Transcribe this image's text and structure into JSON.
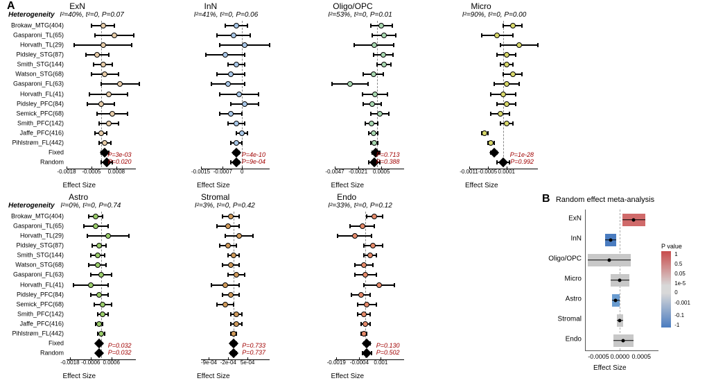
{
  "panel_labels": {
    "A": "A",
    "B": "B"
  },
  "heterogeneity_label": "Heterogeneity",
  "studies": [
    "Brokaw_MTG(404)",
    "Gasparoni_TL(65)",
    "Horvath_TL(29)",
    "Pidsley_STG(87)",
    "Smith_STG(144)",
    "Watson_STG(68)",
    "Gasparoni_FL(63)",
    "Horvath_FL(41)",
    "Pidsley_PFC(84)",
    "Semick_PFC(68)",
    "Smith_PFC(142)",
    "Jaffe_PFC(416)",
    "Pihlstrøm_FL(442)",
    "Fixed",
    "Random"
  ],
  "panels": [
    {
      "title": "ExN",
      "het": "I²=40%, t²=0, P=0.07",
      "color": "#e8cda9",
      "xlim": [
        -0.0018,
        0.0018
      ],
      "ticks": [
        "-0.0018",
        "-0.0005",
        "0.0008"
      ],
      "tick_pos": [
        -0.0018,
        -0.0005,
        0.0008
      ],
      "p_fixed": "P=3e-03",
      "p_random": "P=0.020",
      "rows": [
        {
          "est": 0.0001,
          "lo": -0.0005,
          "hi": 0.0007
        },
        {
          "est": 0.0007,
          "lo": -0.0003,
          "hi": 0.0017
        },
        {
          "est": 0.0001,
          "lo": -0.0014,
          "hi": 0.0016
        },
        {
          "est": -0.0002,
          "lo": -0.0008,
          "hi": 0.0004
        },
        {
          "est": 0.0001,
          "lo": -0.0004,
          "hi": 0.0006
        },
        {
          "est": 0.0002,
          "lo": -0.0005,
          "hi": 0.0009
        },
        {
          "est": 0.001,
          "lo": 0.0,
          "hi": 0.002
        },
        {
          "est": 0.0004,
          "lo": -0.0006,
          "hi": 0.0014
        },
        {
          "est": 0.0,
          "lo": -0.0007,
          "hi": 0.0007
        },
        {
          "est": 0.0006,
          "lo": -0.0002,
          "hi": 0.0014
        },
        {
          "est": 0.0004,
          "lo": -0.0001,
          "hi": 0.0009
        },
        {
          "est": 0.0,
          "lo": -0.0003,
          "hi": 0.0003
        },
        {
          "est": 0.0002,
          "lo": -0.0001,
          "hi": 0.0005
        },
        {
          "est": 0.0002,
          "lo": 0.0,
          "hi": 0.0004,
          "pooled": true
        },
        {
          "est": 0.0003,
          "lo": 0.0,
          "hi": 0.0006,
          "pooled": true
        }
      ]
    },
    {
      "title": "InN",
      "het": "I²=41%, t²=0, P=0.06",
      "color": "#a8c7e8",
      "xlim": [
        -0.0015,
        0.001
      ],
      "ticks": [
        "-0.0015",
        "-0.0007",
        "0"
      ],
      "tick_pos": [
        -0.0015,
        -0.0007,
        0
      ],
      "p_fixed": "P=4e-10",
      "p_random": "P=9e-04",
      "rows": [
        {
          "est": -0.0002,
          "lo": -0.0006,
          "hi": 0.0002
        },
        {
          "est": -0.0003,
          "lo": -0.0009,
          "hi": 0.0003
        },
        {
          "est": 0.0001,
          "lo": -0.0008,
          "hi": 0.001
        },
        {
          "est": -0.0006,
          "lo": -0.0013,
          "hi": 0.0001
        },
        {
          "est": -0.0002,
          "lo": -0.0005,
          "hi": 0.0001
        },
        {
          "est": -0.0004,
          "lo": -0.0009,
          "hi": 0.0001
        },
        {
          "est": -0.0005,
          "lo": -0.0011,
          "hi": 0.0001
        },
        {
          "est": -0.0001,
          "lo": -0.0008,
          "hi": 0.0006
        },
        {
          "est": 0.0001,
          "lo": -0.0004,
          "hi": 0.0006
        },
        {
          "est": -0.0004,
          "lo": -0.0008,
          "hi": 0.0
        },
        {
          "est": -0.0002,
          "lo": -0.0005,
          "hi": 0.0001
        },
        {
          "est": 0.0,
          "lo": -0.0002,
          "hi": 0.0002
        },
        {
          "est": -0.0002,
          "lo": -0.0004,
          "hi": 0.0
        },
        {
          "est": -0.0002,
          "lo": -0.0003,
          "hi": -0.0001,
          "pooled": true
        },
        {
          "est": -0.0002,
          "lo": -0.0004,
          "hi": -0.0001,
          "pooled": true
        }
      ]
    },
    {
      "title": "Oligo/OPC",
      "het": "I²=53%, t²=0, P=0.01",
      "color": "#a8d8b0",
      "xlim": [
        -0.0047,
        0.003
      ],
      "ticks": [
        "-0.0047",
        "-0.0021",
        "0.0005"
      ],
      "tick_pos": [
        -0.0047,
        -0.0021,
        0.0005
      ],
      "p_fixed": "P=0.713",
      "p_random": "P=0.388",
      "rows": [
        {
          "est": 0.0005,
          "lo": -0.0007,
          "hi": 0.0017
        },
        {
          "est": 0.0008,
          "lo": -0.0005,
          "hi": 0.0021
        },
        {
          "est": -0.0003,
          "lo": -0.0025,
          "hi": 0.0019
        },
        {
          "est": 0.0007,
          "lo": -0.0004,
          "hi": 0.0018
        },
        {
          "est": 0.0008,
          "lo": 0.0,
          "hi": 0.0016
        },
        {
          "est": -0.0004,
          "lo": -0.0015,
          "hi": 0.0007
        },
        {
          "est": -0.003,
          "lo": -0.005,
          "hi": -0.001
        },
        {
          "est": -0.0002,
          "lo": -0.0016,
          "hi": 0.0012
        },
        {
          "est": -0.0005,
          "lo": -0.0015,
          "hi": 0.0005
        },
        {
          "est": 0.0003,
          "lo": -0.0007,
          "hi": 0.0013
        },
        {
          "est": -0.0006,
          "lo": -0.0013,
          "hi": 0.0001
        },
        {
          "est": -0.0004,
          "lo": -0.0009,
          "hi": 0.0001
        },
        {
          "est": -0.0003,
          "lo": -0.0007,
          "hi": 0.0001
        },
        {
          "est": -0.0001,
          "lo": -0.0005,
          "hi": 0.0003,
          "pooled": true
        },
        {
          "est": -0.0003,
          "lo": -0.0009,
          "hi": 0.0003,
          "pooled": true
        }
      ]
    },
    {
      "title": "Micro",
      "het": "I²=90%, t²=0, P=0.00",
      "color": "#d8d86a",
      "xlim": [
        -0.0011,
        0.0011
      ],
      "ticks": [
        "-0.0011",
        "-0.0005",
        "0.0001"
      ],
      "tick_pos": [
        -0.0011,
        -0.0005,
        0.0001
      ],
      "p_fixed": "P=1e-28",
      "p_random": "P=0.992",
      "rows": [
        {
          "est": 0.0003,
          "lo": 0.0,
          "hi": 0.0006
        },
        {
          "est": -0.0002,
          "lo": -0.0007,
          "hi": 0.0003
        },
        {
          "est": 0.0005,
          "lo": -0.0001,
          "hi": 0.0011
        },
        {
          "est": 0.0001,
          "lo": -0.0002,
          "hi": 0.0004
        },
        {
          "est": 0.0001,
          "lo": -0.0001,
          "hi": 0.0003
        },
        {
          "est": 0.0003,
          "lo": 0.0,
          "hi": 0.0006
        },
        {
          "est": 0.0001,
          "lo": -0.0003,
          "hi": 0.0005
        },
        {
          "est": 0.0,
          "lo": -0.0004,
          "hi": 0.0004
        },
        {
          "est": 0.0001,
          "lo": -0.0002,
          "hi": 0.0004
        },
        {
          "est": -0.0001,
          "lo": -0.0004,
          "hi": 0.0002
        },
        {
          "est": 0.0001,
          "lo": -0.0001,
          "hi": 0.0003
        },
        {
          "est": -0.0006,
          "lo": -0.0007,
          "hi": -0.0005
        },
        {
          "est": -0.0004,
          "lo": -0.0005,
          "hi": -0.0003
        },
        {
          "est": -0.0003,
          "lo": -0.0004,
          "hi": -0.0002,
          "pooled": true
        },
        {
          "est": 0.0,
          "lo": -0.0002,
          "hi": 0.0002,
          "pooled": true
        }
      ]
    },
    {
      "title": "Astro",
      "het": "I²=0%, t²=0, P=0.74",
      "color": "#9acd6a",
      "xlim": [
        -0.002,
        0.002
      ],
      "ticks": [
        "-0.0018",
        "-0.0006",
        "0.0006"
      ],
      "tick_pos": [
        -0.0018,
        -0.0006,
        0.0006
      ],
      "p_fixed": "P=0.032",
      "p_random": "P=0.032",
      "rows": [
        {
          "est": -0.0003,
          "lo": -0.0007,
          "hi": 0.0001
        },
        {
          "est": -0.0003,
          "lo": -0.001,
          "hi": 0.0004
        },
        {
          "est": 0.0004,
          "lo": -0.0008,
          "hi": 0.0016
        },
        {
          "est": -0.0001,
          "lo": -0.0005,
          "hi": 0.0003
        },
        {
          "est": -0.0002,
          "lo": -0.0006,
          "hi": 0.0002
        },
        {
          "est": -0.0002,
          "lo": -0.0007,
          "hi": 0.0003
        },
        {
          "est": 0.0,
          "lo": -0.0006,
          "hi": 0.0006
        },
        {
          "est": -0.0006,
          "lo": -0.0016,
          "hi": 0.0004
        },
        {
          "est": -0.0001,
          "lo": -0.0006,
          "hi": 0.0004
        },
        {
          "est": 0.0001,
          "lo": -0.0004,
          "hi": 0.0006
        },
        {
          "est": 0.0001,
          "lo": -0.0002,
          "hi": 0.0004
        },
        {
          "est": -0.0001,
          "lo": -0.0003,
          "hi": 0.0001
        },
        {
          "est": 0.0,
          "lo": -0.0002,
          "hi": 0.0002
        },
        {
          "est": -0.0001,
          "lo": -0.0002,
          "hi": 0.0,
          "pooled": true
        },
        {
          "est": -0.0001,
          "lo": -0.0002,
          "hi": 0.0,
          "pooled": true
        }
      ]
    },
    {
      "title": "Stromal",
      "het": "I²=3%, t²=0, P=0.42",
      "color": "#d09a5a",
      "xlim": [
        -0.0012,
        0.0013
      ],
      "ticks": [
        "-9e-04",
        "-2e-04",
        "5e-04"
      ],
      "tick_pos": [
        -0.0009,
        -0.0002,
        0.0005
      ],
      "p_fixed": "P=0.733",
      "p_random": "P=0.737",
      "rows": [
        {
          "est": -0.0001,
          "lo": -0.0004,
          "hi": 0.0002
        },
        {
          "est": -0.0002,
          "lo": -0.0006,
          "hi": 0.0002
        },
        {
          "est": 0.0002,
          "lo": -0.0003,
          "hi": 0.0007
        },
        {
          "est": -0.0002,
          "lo": -0.0005,
          "hi": 0.0001
        },
        {
          "est": 0.0,
          "lo": -0.0002,
          "hi": 0.0002
        },
        {
          "est": -0.0001,
          "lo": -0.0004,
          "hi": 0.0002
        },
        {
          "est": 0.0001,
          "lo": -0.0002,
          "hi": 0.0004
        },
        {
          "est": -0.0003,
          "lo": -0.0008,
          "hi": 0.0002
        },
        {
          "est": -0.0001,
          "lo": -0.0004,
          "hi": 0.0002
        },
        {
          "est": -0.0003,
          "lo": -0.0006,
          "hi": 0.0
        },
        {
          "est": 0.0001,
          "lo": -0.0001,
          "hi": 0.0003
        },
        {
          "est": 0.0001,
          "lo": -0.0001,
          "hi": 0.0003
        },
        {
          "est": 0.0,
          "lo": -0.0001,
          "hi": 0.0001
        },
        {
          "est": 0.0,
          "lo": -0.0001,
          "hi": 0.0001,
          "pooled": true
        },
        {
          "est": 0.0,
          "lo": -0.0001,
          "hi": 0.0001,
          "pooled": true
        }
      ]
    },
    {
      "title": "Endo",
      "het": "I²=33%, t²=0, P=0.12",
      "color": "#e68a6a",
      "xlim": [
        -0.002,
        0.0025
      ],
      "ticks": [
        "-0.0019",
        "-0.0004",
        "0.001"
      ],
      "tick_pos": [
        -0.0019,
        -0.0004,
        0.001
      ],
      "p_fixed": "P=0.130",
      "p_random": "P=0.502",
      "rows": [
        {
          "est": 0.0006,
          "lo": 0.0001,
          "hi": 0.0011
        },
        {
          "est": -0.0002,
          "lo": -0.001,
          "hi": 0.0006
        },
        {
          "est": -0.0007,
          "lo": -0.0018,
          "hi": 0.0004
        },
        {
          "est": 0.0005,
          "lo": -0.0001,
          "hi": 0.0011
        },
        {
          "est": 0.0003,
          "lo": -0.0001,
          "hi": 0.0007
        },
        {
          "est": -0.0001,
          "lo": -0.0007,
          "hi": 0.0005
        },
        {
          "est": 0.0,
          "lo": -0.0007,
          "hi": 0.0007
        },
        {
          "est": 0.0009,
          "lo": -0.0001,
          "hi": 0.0019
        },
        {
          "est": -0.0003,
          "lo": -0.0009,
          "hi": 0.0003
        },
        {
          "est": 0.0001,
          "lo": -0.0005,
          "hi": 0.0007
        },
        {
          "est": -0.0001,
          "lo": -0.0005,
          "hi": 0.0003
        },
        {
          "est": 0.0,
          "lo": -0.0003,
          "hi": 0.0003
        },
        {
          "est": -0.0001,
          "lo": -0.0003,
          "hi": 0.0001
        },
        {
          "est": 0.0001,
          "lo": -0.0001,
          "hi": 0.0003,
          "pooled": true
        },
        {
          "est": 0.0001,
          "lo": -0.0002,
          "hi": 0.0004,
          "pooled": true
        }
      ]
    }
  ],
  "x_axis_label": "Effect Size",
  "panelB": {
    "title": "Random effect meta-analysis",
    "xlim": [
      -0.0008,
      0.0009
    ],
    "ticks": [
      "-0.0005",
      "0.0000",
      "0.0005"
    ],
    "tick_pos": [
      -0.0005,
      0.0,
      0.0005
    ],
    "xlabel": "Effect Size",
    "legend_title": "P value",
    "legend_labels": [
      "1",
      "0.5",
      "0.05",
      "1e-5",
      "0",
      "-0.001",
      "-0.1",
      "-1"
    ],
    "rows": [
      {
        "name": "ExN",
        "est": 0.00032,
        "lo": 5e-05,
        "hi": 0.0006,
        "col": "#d06a6a"
      },
      {
        "name": "InN",
        "est": -0.00022,
        "lo": -0.00035,
        "hi": -8e-05,
        "col": "#4a7cc0"
      },
      {
        "name": "Oligo/OPC",
        "est": -0.00025,
        "lo": -0.00075,
        "hi": 0.00025,
        "col": "#c8c8c8"
      },
      {
        "name": "Micro",
        "est": 0.0,
        "lo": -0.00022,
        "hi": 0.00022,
        "col": "#c8c8c8"
      },
      {
        "name": "Astro",
        "est": -0.0001,
        "lo": -0.00019,
        "hi": -1e-05,
        "col": "#6a9cd0"
      },
      {
        "name": "Stromal",
        "est": 0.0,
        "lo": -7e-05,
        "hi": 8e-05,
        "col": "#c8c8c8"
      },
      {
        "name": "Endo",
        "est": 8e-05,
        "lo": -0.00016,
        "hi": 0.00032,
        "col": "#c8c8c8"
      }
    ]
  }
}
